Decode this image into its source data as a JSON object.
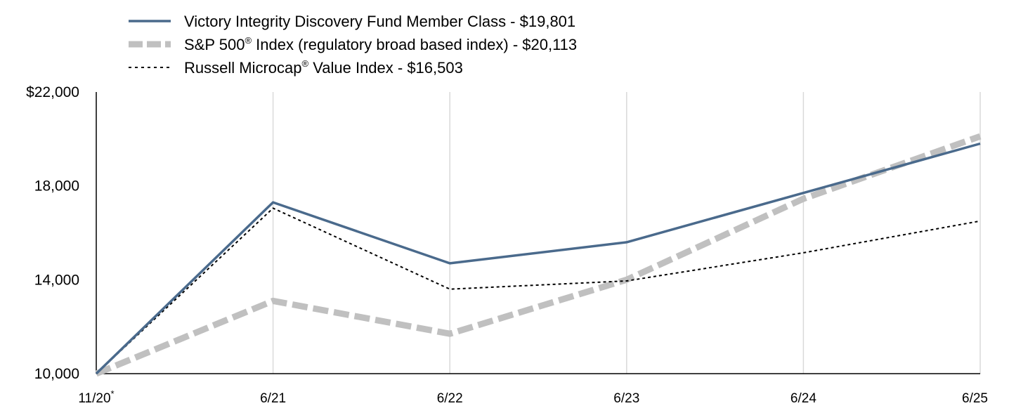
{
  "chart_data": {
    "type": "line",
    "title": "",
    "xlabel": "",
    "ylabel": "",
    "categories": [
      "11/20",
      "6/21",
      "6/22",
      "6/23",
      "6/24",
      "6/25"
    ],
    "first_category_marker": "*",
    "ylim": [
      10000,
      22000
    ],
    "yticks": [
      {
        "value": 10000,
        "label": "10,000"
      },
      {
        "value": 14000,
        "label": "14,000"
      },
      {
        "value": 18000,
        "label": "18,000"
      },
      {
        "value": 22000,
        "label": "$22,000"
      }
    ],
    "grid": "vertical",
    "legend_position": "top-left",
    "series": [
      {
        "name": "Victory Integrity Discovery Fund Member Class - $19,801",
        "legend_parts": [
          "Victory Integrity Discovery Fund Member Class - $19,801"
        ],
        "values": [
          10000,
          17300,
          14700,
          15600,
          17700,
          19801
        ],
        "color": "#4a6a8c",
        "style": "solid"
      },
      {
        "name": "S&P 500® Index (regulatory broad based index) - $20,113",
        "legend_parts": [
          "S&P 500",
          "®",
          " Index (regulatory broad based index) - $20,113"
        ],
        "values": [
          10000,
          13100,
          11700,
          14000,
          17450,
          20113
        ],
        "color": "#c0c0c0",
        "style": "thick-dashed"
      },
      {
        "name": "Russell Microcap® Value Index - $16,503",
        "legend_parts": [
          "Russell Microcap",
          "®",
          " Value Index - $16,503"
        ],
        "values": [
          10000,
          17050,
          13600,
          13950,
          15150,
          16503
        ],
        "color": "#000000",
        "style": "dotted"
      }
    ]
  }
}
